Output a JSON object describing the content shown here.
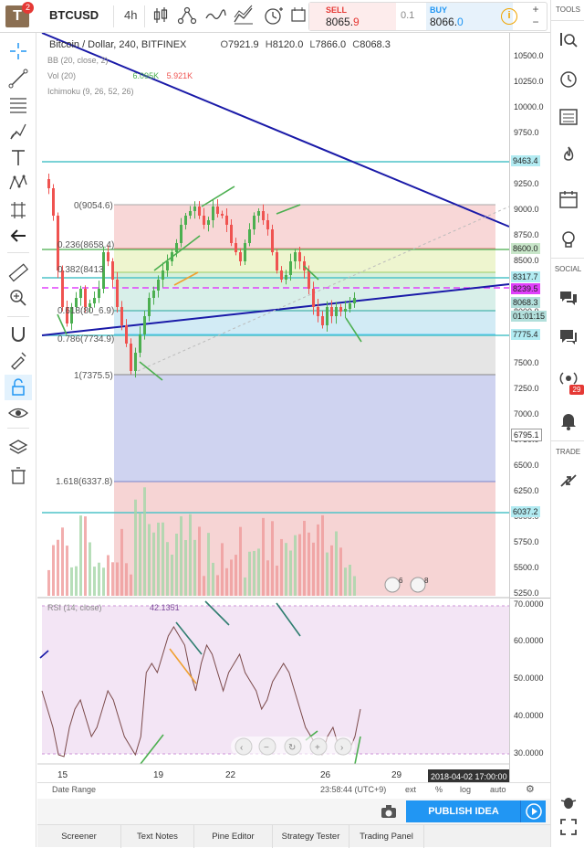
{
  "toolbar": {
    "logo_letter": "T",
    "logo_badge": "2",
    "symbol": "BTCUSD",
    "interval": "4h"
  },
  "trade": {
    "sell_label": "SELL",
    "sell_price_main": "8065.",
    "sell_price_last": "9",
    "spread": "0.1",
    "buy_label": "BUY",
    "buy_price_main": "8066.",
    "buy_price_last": "0",
    "zoom_in": "+",
    "zoom_out": "−"
  },
  "legend": {
    "title": "Bitcoin / Dollar, 240, BITFINEX",
    "o_label": "O",
    "o_val": "7921.9",
    "h_label": "H",
    "h_val": "8120.0",
    "l_label": "L",
    "l_val": "7866.0",
    "c_label": "C",
    "c_val": "8068.3",
    "bb": "BB (20, close, 2)",
    "vol": "Vol (20)",
    "vol_a": "6.095K",
    "vol_b": "5.921K",
    "ichimoku": "Ichimoku (9, 26, 52, 26)",
    "rsi": "RSI (14, close)",
    "rsi_val": "42.1351"
  },
  "fib": [
    {
      "label": "0(9054.6)"
    },
    {
      "label": "0.236(8658.4)"
    },
    {
      "label": "0.382(8413"
    },
    {
      "label": "0.618(80_6.9)"
    },
    {
      "label": "0.786(7734.9)"
    },
    {
      "label": "1(7375.5)"
    },
    {
      "label": "1.618(6337.8)"
    }
  ],
  "price_axis": {
    "ticks": [
      "10500.0",
      "10250.0",
      "10000.0",
      "9750.0",
      "9250.0",
      "9000.0",
      "8750.0",
      "8500.0",
      "8000.0",
      "7500.0",
      "7250.0",
      "7000.0",
      "6750.0",
      "6500.0",
      "6250.0",
      "6000.0",
      "5750.0",
      "5500.0",
      "5250.0"
    ],
    "tags": [
      {
        "text": "9463.4",
        "color": "#b2ebf2"
      },
      {
        "text": "8600.0",
        "color": "#c8e6c9"
      },
      {
        "text": "8317.7",
        "color": "#b2ebf2"
      },
      {
        "text": "8239.5",
        "color": "#e040fb"
      },
      {
        "text": "8068.3",
        "color": "#b2dfdb"
      },
      {
        "text": "01:01:15",
        "color": "#b2dfdb"
      },
      {
        "text": "7775.4",
        "color": "#b2ebf2"
      },
      {
        "text": "6795.1",
        "color": "#ffffff"
      },
      {
        "text": "6037.2",
        "color": "#b2ebf2"
      }
    ]
  },
  "rsi_axis": {
    "ticks": [
      "70.0000",
      "60.0000",
      "50.0000",
      "40.0000",
      "30.0000"
    ]
  },
  "time_axis": {
    "ticks": [
      "15",
      "19",
      "22",
      "26",
      "29"
    ],
    "current": "2018-04-02 17:00:00"
  },
  "bottom_bar": {
    "date_range": "Date Range",
    "clock": "23:58:44 (UTC+9)",
    "ext": "ext",
    "pct": "%",
    "log": "log",
    "auto": "auto"
  },
  "publish": {
    "label": "PUBLISH IDEA"
  },
  "tabs": [
    "Screener",
    "Text Notes",
    "Pine Editor",
    "Strategy Tester",
    "Trading Panel"
  ],
  "rightbar": {
    "tools": "TOOLS",
    "social": "SOCIAL",
    "trade": "TRADE",
    "notif_count": "29"
  },
  "flags": {
    "a": "6",
    "b": "8"
  },
  "colors": {
    "candle_up": "#4caf50",
    "candle_down": "#ef5350",
    "trend_line": "#1a1aa8",
    "rsi_bg": "#f3e5f5",
    "accent": "#2196f3"
  }
}
